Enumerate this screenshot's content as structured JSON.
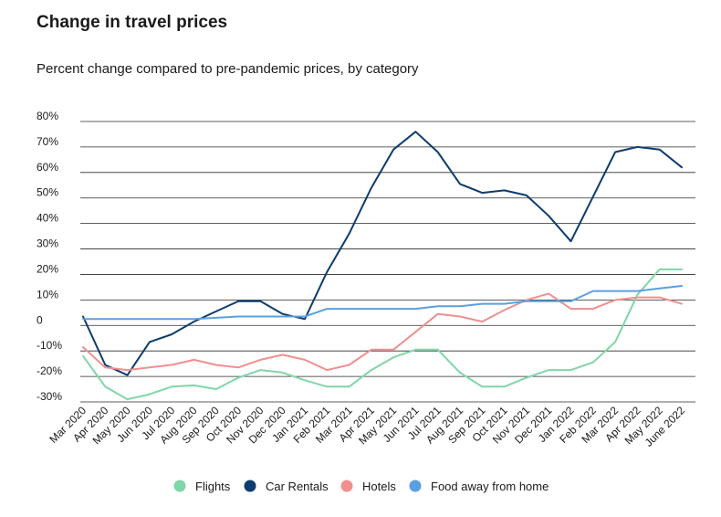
{
  "chart_data": {
    "type": "line",
    "title": "Change in travel prices",
    "subtitle": "Percent change compared to pre-pandemic prices, by category",
    "y_ticks": [
      {
        "value": 80,
        "label": "80%"
      },
      {
        "value": 70,
        "label": "70%"
      },
      {
        "value": 60,
        "label": "60%"
      },
      {
        "value": 50,
        "label": "50%"
      },
      {
        "value": 40,
        "label": "40%"
      },
      {
        "value": 30,
        "label": "30%"
      },
      {
        "value": 20,
        "label": "20%"
      },
      {
        "value": 10,
        "label": "10%"
      },
      {
        "value": 0,
        "label": "0"
      },
      {
        "value": -10,
        "label": "-10%"
      },
      {
        "value": -20,
        "label": "-20%"
      },
      {
        "value": -30,
        "label": "-30%"
      }
    ],
    "ylim": [
      -30,
      80
    ],
    "grid": "horizontal",
    "legend_position": "bottom",
    "categories": [
      "Mar 2020",
      "Apr 2020",
      "May 2020",
      "Jun 2020",
      "Jul 2020",
      "Aug 2020",
      "Sep 2020",
      "Oct 2020",
      "Nov 2020",
      "Dec 2020",
      "Jan 2021",
      "Feb 2021",
      "Mar 2021",
      "Apr 2021",
      "May 2021",
      "Jun 2021",
      "Jul 2021",
      "Aug 2021",
      "Sep 2021",
      "Oct 2021",
      "Nov 2021",
      "Dec 2021",
      "Jan 2022",
      "Feb 2022",
      "Mar 2022",
      "Apr 2022",
      "May 2022",
      "June 2022"
    ],
    "series": [
      {
        "name": "Flights",
        "color": "#7fd6a8",
        "values": [
          -12,
          -24,
          -29,
          -27,
          -24,
          -23.5,
          -25,
          -20.5,
          -17.5,
          -18.5,
          -21.5,
          -24,
          -24,
          -17.5,
          -12.5,
          -9.5,
          -9.5,
          -18.5,
          -24,
          -24,
          -20.5,
          -17.5,
          -17.5,
          -14.5,
          -6.5,
          12,
          22,
          22
        ]
      },
      {
        "name": "Car Rentals",
        "color": "#0d3c6e",
        "values": [
          3.5,
          -15.5,
          -19.5,
          -6.5,
          -3.5,
          1.5,
          5.5,
          9.5,
          9.5,
          4.5,
          2.5,
          21,
          36,
          54,
          69,
          76,
          68,
          55.5,
          52,
          53,
          51,
          43,
          33,
          50.5,
          68,
          70,
          69,
          62
        ]
      },
      {
        "name": "Hotels",
        "color": "#f08f8f",
        "values": [
          -8.5,
          -16.5,
          -17.5,
          -16.5,
          -15.5,
          -13.5,
          -15.5,
          -16.5,
          -13.5,
          -11.5,
          -13.5,
          -17.5,
          -15.5,
          -9.5,
          -9.5,
          -2.5,
          4.5,
          3.5,
          1.5,
          6,
          10,
          12.5,
          6.5,
          6.5,
          10,
          11,
          11,
          8.5
        ]
      },
      {
        "name": "Food away from home",
        "color": "#5aa0e0",
        "values": [
          2.5,
          2.5,
          2.5,
          2.5,
          2.5,
          2.5,
          3,
          3.5,
          3.5,
          3.5,
          3.5,
          6.5,
          6.5,
          6.5,
          6.5,
          6.5,
          7.5,
          7.5,
          8.5,
          8.5,
          9.5,
          9.5,
          9.5,
          13.5,
          13.5,
          13.5,
          14.5,
          15.5
        ]
      }
    ]
  }
}
